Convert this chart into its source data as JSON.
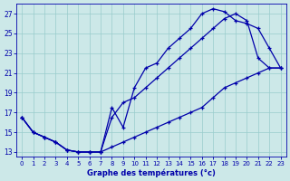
{
  "bg_color": "#cce8e8",
  "grid_color": "#99cccc",
  "line_color": "#0000aa",
  "xlabel": "Graphe des températures (°c)",
  "xlim": [
    -0.5,
    23.5
  ],
  "ylim": [
    12.5,
    28.0
  ],
  "yticks": [
    13,
    15,
    17,
    19,
    21,
    23,
    25,
    27
  ],
  "xticks": [
    0,
    1,
    2,
    3,
    4,
    5,
    6,
    7,
    8,
    9,
    10,
    11,
    12,
    13,
    14,
    15,
    16,
    17,
    18,
    19,
    20,
    21,
    22,
    23
  ],
  "line1_x": [
    0,
    1,
    2,
    3,
    4,
    5,
    6,
    7,
    8,
    9,
    10,
    11,
    12,
    13,
    14,
    15,
    16,
    17,
    18,
    19,
    20,
    21,
    22,
    23
  ],
  "line1_y": [
    16.5,
    15.0,
    14.5,
    14.0,
    13.2,
    13.0,
    13.0,
    13.0,
    17.5,
    15.5,
    19.5,
    21.5,
    22.0,
    23.5,
    24.5,
    25.5,
    27.0,
    27.5,
    27.2,
    26.3,
    26.0,
    25.5,
    23.5,
    21.5
  ],
  "line2_x": [
    0,
    1,
    2,
    3,
    4,
    5,
    6,
    7,
    8,
    9,
    10,
    11,
    12,
    13,
    14,
    15,
    16,
    17,
    18,
    19,
    20,
    21,
    22,
    23
  ],
  "line2_y": [
    16.5,
    15.0,
    14.5,
    14.0,
    13.2,
    13.0,
    13.0,
    13.0,
    16.5,
    18.0,
    18.5,
    19.5,
    20.5,
    21.5,
    22.5,
    23.5,
    24.5,
    25.5,
    26.5,
    27.0,
    26.3,
    22.5,
    21.5,
    21.5
  ],
  "line3_x": [
    0,
    1,
    2,
    3,
    4,
    5,
    6,
    7,
    8,
    9,
    10,
    11,
    12,
    13,
    14,
    15,
    16,
    17,
    18,
    19,
    20,
    21,
    22,
    23
  ],
  "line3_y": [
    16.5,
    15.0,
    14.5,
    14.0,
    13.2,
    13.0,
    13.0,
    13.0,
    13.5,
    14.0,
    14.5,
    15.0,
    15.5,
    16.0,
    16.5,
    17.0,
    17.5,
    18.5,
    19.5,
    20.0,
    20.5,
    21.0,
    21.5,
    21.5
  ]
}
